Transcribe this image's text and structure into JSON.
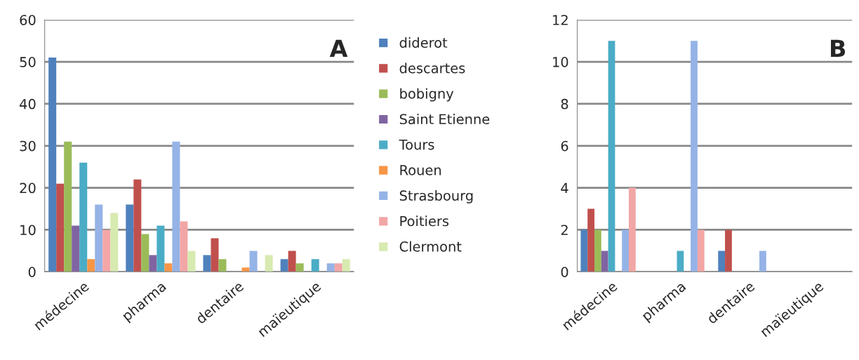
{
  "chart_data": [
    {
      "type": "bar",
      "title": "A",
      "categories": [
        "médecine",
        "pharma",
        "dentaire",
        "maïeutique"
      ],
      "ylim": [
        0,
        60
      ],
      "yticks": [
        0,
        10,
        20,
        30,
        40,
        50,
        60
      ],
      "grid": "y",
      "legend": "right",
      "series": [
        {
          "name": "diderot",
          "color": "#4f81bd",
          "values": [
            51,
            16,
            4,
            3
          ]
        },
        {
          "name": "descartes",
          "color": "#c0504d",
          "values": [
            21,
            22,
            8,
            5
          ]
        },
        {
          "name": "bobigny",
          "color": "#9bbb59",
          "values": [
            31,
            9,
            3,
            2
          ]
        },
        {
          "name": "Saint Etienne",
          "color": "#8064a2",
          "values": [
            11,
            4,
            0,
            0
          ]
        },
        {
          "name": "Tours",
          "color": "#4bacc6",
          "values": [
            26,
            11,
            0,
            3
          ]
        },
        {
          "name": "Rouen",
          "color": "#f79646",
          "values": [
            3,
            2,
            1,
            0
          ]
        },
        {
          "name": "Strasbourg",
          "color": "#95b3e7",
          "values": [
            16,
            31,
            5,
            2
          ]
        },
        {
          "name": "Poitiers",
          "color": "#f2a6a6",
          "values": [
            10,
            12,
            0,
            2
          ]
        },
        {
          "name": "Clermont",
          "color": "#d7eab0",
          "values": [
            14,
            5,
            4,
            3
          ]
        }
      ]
    },
    {
      "type": "bar",
      "title": "B",
      "categories": [
        "médecine",
        "pharma",
        "dentaire",
        "maïeutique"
      ],
      "ylim": [
        0,
        12
      ],
      "yticks": [
        0,
        2,
        4,
        6,
        8,
        10,
        12
      ],
      "grid": "y",
      "series": [
        {
          "color": "#4f81bd",
          "values": [
            2,
            0,
            1,
            0
          ]
        },
        {
          "color": "#c0504d",
          "values": [
            3,
            0,
            2,
            0
          ]
        },
        {
          "color": "#9bbb59",
          "values": [
            2,
            0,
            0,
            0
          ]
        },
        {
          "color": "#8064a2",
          "values": [
            1,
            0,
            0,
            0
          ]
        },
        {
          "color": "#4bacc6",
          "values": [
            11,
            1,
            0,
            0
          ]
        },
        {
          "color": "#f79646",
          "values": [
            0,
            0,
            0,
            0
          ]
        },
        {
          "color": "#95b3e7",
          "values": [
            2,
            11,
            1,
            0
          ]
        },
        {
          "color": "#f2a6a6",
          "values": [
            4,
            2,
            0,
            0
          ]
        },
        {
          "color": "#d7eab0",
          "values": [
            0,
            0,
            0,
            0
          ]
        }
      ]
    }
  ]
}
